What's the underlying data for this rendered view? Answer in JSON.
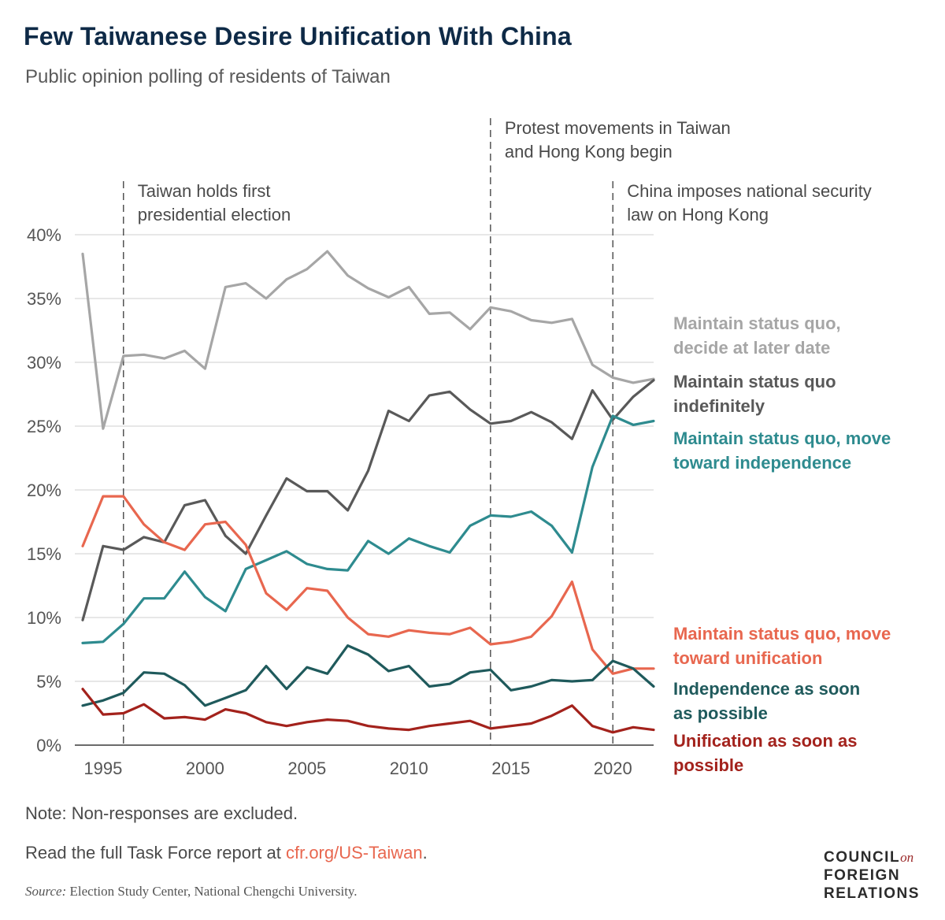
{
  "header": {
    "title": "Few Taiwanese Desire Unification With China",
    "subtitle": "Public opinion polling of residents of Taiwan"
  },
  "footer": {
    "note": "Note: Non-responses are excluded.",
    "read_prefix": "Read the full Task Force report at ",
    "read_link": "cfr.org/US-Taiwan",
    "read_suffix": ".",
    "source_label": "Source:",
    "source_text": " Election Study Center, National Chengchi University."
  },
  "logo": {
    "line1": "COUNCIL",
    "line1_suffix": "on",
    "line2": "FOREIGN",
    "line3": "RELATIONS"
  },
  "chart_data": {
    "type": "line",
    "title": "Few Taiwanese Desire Unification With China",
    "subtitle": "Public opinion polling of residents of Taiwan",
    "xlabel": "",
    "ylabel": "",
    "xlim": [
      1994,
      2022
    ],
    "ylim": [
      0,
      40
    ],
    "x_ticks": [
      1995,
      2000,
      2005,
      2010,
      2015,
      2020
    ],
    "y_ticks": [
      0,
      5,
      10,
      15,
      20,
      25,
      30,
      35,
      40
    ],
    "y_tick_labels": [
      "0%",
      "5%",
      "10%",
      "15%",
      "20%",
      "25%",
      "30%",
      "35%",
      "40%"
    ],
    "grid": true,
    "x": [
      1994,
      1995,
      1996,
      1997,
      1998,
      1999,
      2000,
      2001,
      2002,
      2003,
      2004,
      2005,
      2006,
      2007,
      2008,
      2009,
      2010,
      2011,
      2012,
      2013,
      2014,
      2015,
      2016,
      2017,
      2018,
      2019,
      2020,
      2021,
      2022
    ],
    "annotations": [
      {
        "x": 1996,
        "lines": [
          "Taiwan holds first",
          "presidential election"
        ]
      },
      {
        "x": 2014,
        "lines": [
          "Protest movements in Taiwan",
          "and Hong Kong begin"
        ]
      },
      {
        "x": 2020,
        "lines": [
          "China imposes national security",
          "law on Hong Kong"
        ]
      }
    ],
    "series": [
      {
        "name": "Maintain status quo, decide at later date",
        "label_lines": [
          "Maintain status quo,",
          "decide at later date"
        ],
        "color": "#a6a6a6",
        "values": [
          38.5,
          24.8,
          30.5,
          30.6,
          30.3,
          30.9,
          29.5,
          35.9,
          36.2,
          35.0,
          36.5,
          37.3,
          38.7,
          36.8,
          35.8,
          35.1,
          35.9,
          33.8,
          33.9,
          32.6,
          34.3,
          34.0,
          33.3,
          33.1,
          33.4,
          29.8,
          28.8,
          28.4,
          28.7
        ]
      },
      {
        "name": "Maintain status quo indefinitely",
        "label_lines": [
          "Maintain status quo",
          "indefinitely"
        ],
        "color": "#595959",
        "values": [
          9.8,
          15.6,
          15.3,
          16.3,
          15.9,
          18.8,
          19.2,
          16.4,
          15.0,
          18.0,
          20.9,
          19.9,
          19.9,
          18.4,
          21.5,
          26.2,
          25.4,
          27.4,
          27.7,
          26.3,
          25.2,
          25.4,
          26.1,
          25.3,
          24.0,
          27.8,
          25.5,
          27.3,
          28.6
        ]
      },
      {
        "name": "Maintain status quo, move toward independence",
        "label_lines": [
          "Maintain status quo, move",
          "toward independence"
        ],
        "color": "#2e8b8f",
        "values": [
          8.0,
          8.1,
          9.5,
          11.5,
          11.5,
          13.6,
          11.6,
          10.5,
          13.8,
          14.5,
          15.2,
          14.2,
          13.8,
          13.7,
          16.0,
          15.0,
          16.2,
          15.6,
          15.1,
          17.2,
          18.0,
          17.9,
          18.3,
          17.2,
          15.1,
          21.8,
          25.8,
          25.1,
          25.4
        ]
      },
      {
        "name": "Maintain status quo, move toward unification",
        "label_lines": [
          "Maintain status quo, move",
          "toward unification"
        ],
        "color": "#e8674f",
        "values": [
          15.6,
          19.5,
          19.5,
          17.3,
          15.9,
          15.3,
          17.3,
          17.5,
          15.7,
          11.9,
          10.6,
          12.3,
          12.1,
          10.0,
          8.7,
          8.5,
          9.0,
          8.8,
          8.7,
          9.2,
          7.9,
          8.1,
          8.5,
          10.1,
          12.8,
          7.5,
          5.6,
          6.0,
          6.0
        ]
      },
      {
        "name": "Independence as soon as possible",
        "label_lines": [
          "Independence as soon",
          "as possible"
        ],
        "color": "#1f5a5c",
        "values": [
          3.1,
          3.5,
          4.1,
          5.7,
          5.6,
          4.7,
          3.1,
          3.7,
          4.3,
          6.2,
          4.4,
          6.1,
          5.6,
          7.8,
          7.1,
          5.8,
          6.2,
          4.6,
          4.8,
          5.7,
          5.9,
          4.3,
          4.6,
          5.1,
          5.0,
          5.1,
          6.6,
          6.0,
          4.6
        ]
      },
      {
        "name": "Unification as soon as possible",
        "label_lines": [
          "Unification as soon as",
          "possible"
        ],
        "color": "#a3221c",
        "values": [
          4.4,
          2.4,
          2.5,
          3.2,
          2.1,
          2.2,
          2.0,
          2.8,
          2.5,
          1.8,
          1.5,
          1.8,
          2.0,
          1.9,
          1.5,
          1.3,
          1.2,
          1.5,
          1.7,
          1.9,
          1.3,
          1.5,
          1.7,
          2.3,
          3.1,
          1.5,
          1.0,
          1.4,
          1.2
        ]
      }
    ]
  }
}
